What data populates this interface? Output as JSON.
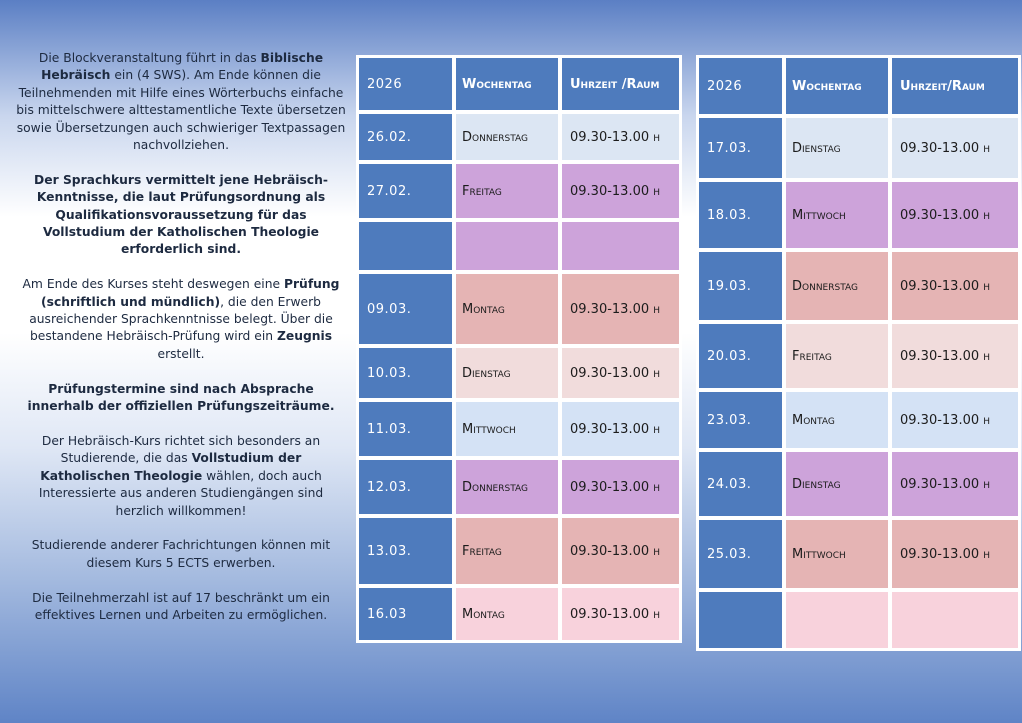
{
  "description": {
    "paragraphs": [
      [
        {
          "t": "Die Blockveranstaltung führt in das ",
          "b": false
        },
        {
          "t": "Biblische Hebräisch",
          "b": true
        },
        {
          "t": " ein (4 SWS). Am Ende können die Teilnehmenden mit Hilfe eines Wörterbuchs einfache bis mittelschwere alttestamentliche Texte übersetzen sowie Übersetzungen auch schwieriger Textpassagen nachvollziehen.",
          "b": false
        }
      ],
      [
        {
          "t": "Der Sprachkurs vermittelt jene Hebräisch-Kenntnisse, die laut Prüfungsordnung als Qualifikationsvoraussetzung für das Vollstudium der Katholischen Theologie erforderlich sind.",
          "b": true
        }
      ],
      [
        {
          "t": "Am Ende des Kurses steht deswegen eine ",
          "b": false
        },
        {
          "t": "Prüfung (schriftlich und mündlich)",
          "b": true
        },
        {
          "t": ", die den Erwerb ausreichender Sprachkenntnisse belegt. Über die bestandene Hebräisch-Prüfung wird ein ",
          "b": false
        },
        {
          "t": "Zeugnis",
          "b": true
        },
        {
          "t": " erstellt.",
          "b": false
        }
      ],
      [
        {
          "t": "Prüfungstermine sind nach Absprache innerhalb der offiziellen Prüfungszeiträume.",
          "b": true
        }
      ],
      [
        {
          "t": "Der Hebräisch-Kurs richtet sich besonders an Studierende, die das ",
          "b": false
        },
        {
          "t": "Vollstudium der Katholischen Theologie",
          "b": true
        },
        {
          "t": " wählen, doch auch Interessierte aus anderen Studiengängen sind herzlich willkommen!",
          "b": false
        }
      ],
      [
        {
          "t": "Studierende anderer Fachrichtungen können mit diesem Kurs 5 ECTS erwerben.",
          "b": false
        }
      ],
      [
        {
          "t": "Die Teilnehmerzahl ist auf 17 beschränkt um ein effektives Lernen und Arbeiten zu ermöglichen.",
          "b": false
        }
      ]
    ]
  },
  "tables": [
    {
      "headers": [
        "2026",
        "Wochentag",
        "Uhrzeit /Raum"
      ],
      "rows": [
        {
          "date": "26.02.",
          "day": "Donnerstag",
          "time": "09.30-13.00 h",
          "color": "#dce6f3"
        },
        {
          "date": "27.02.",
          "day": "Freitag",
          "time": "09.30-13.00 h",
          "color": "#cda3da"
        },
        {
          "date": "",
          "day": "",
          "time": "",
          "color": "#cda3da"
        },
        {
          "date": "09.03.",
          "day": "Montag",
          "time": "09.30-13.00 h",
          "color": "#e5b4b4"
        },
        {
          "date": "10.03.",
          "day": "Dienstag",
          "time": "09.30-13.00 h",
          "color": "#f1dcdc"
        },
        {
          "date": "11.03.",
          "day": "Mittwoch",
          "time": "09.30-13.00 h",
          "color": "#d4e2f5"
        },
        {
          "date": "12.03.",
          "day": "Donnerstag",
          "time": "09.30-13.00 h",
          "color": "#cda3da"
        },
        {
          "date": "13.03.",
          "day": "Freitag",
          "time": "09.30-13.00 h",
          "color": "#e5b4b4"
        },
        {
          "date": "16.03",
          "day": "Montag",
          "time": "09.30-13.00 h",
          "color": "#f8d2dc"
        }
      ]
    },
    {
      "headers": [
        "2026",
        "Wochentag",
        "Uhrzeit/Raum"
      ],
      "rows": [
        {
          "date": "17.03.",
          "day": "Dienstag",
          "time": "09.30-13.00 h",
          "color": "#dce6f3"
        },
        {
          "date": "18.03.",
          "day": "Mittwoch",
          "time": "09.30-13.00 h",
          "color": "#cda3da"
        },
        {
          "date": "19.03.",
          "day": "Donnerstag",
          "time": "09.30-13.00 h",
          "color": "#e5b4b4"
        },
        {
          "date": "20.03.",
          "day": "Freitag",
          "time": "09.30-13.00 h",
          "color": "#f1dcdc"
        },
        {
          "date": "23.03.",
          "day": "Montag",
          "time": "09.30-13.00 h",
          "color": "#d4e2f5"
        },
        {
          "date": "24.03.",
          "day": "Dienstag",
          "time": "09.30-13.00 h",
          "color": "#cda3da"
        },
        {
          "date": "25.03.",
          "day": "Mittwoch",
          "time": "09.30-13.00 h",
          "color": "#e5b4b4"
        },
        {
          "date": "",
          "day": "",
          "time": "",
          "color": "#f8d2dc"
        }
      ]
    }
  ]
}
